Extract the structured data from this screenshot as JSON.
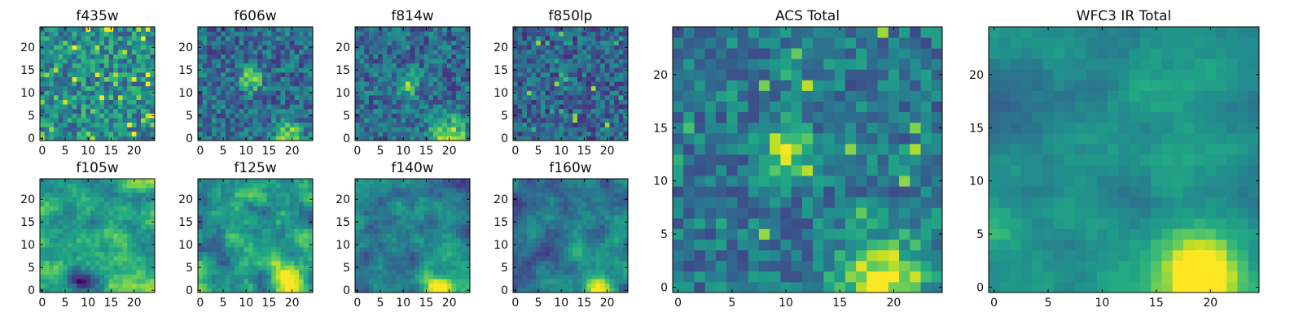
{
  "chart_data": {
    "type": "heatmap",
    "colormap": "viridis",
    "grid": false,
    "pixel_grid": {
      "nx": 25,
      "ny": 25
    },
    "panels": [
      {
        "title": "f435w",
        "pattern": "noise_high",
        "xticks": [
          0,
          5,
          10,
          15,
          20
        ],
        "yticks": [
          0,
          5,
          10,
          15,
          20
        ],
        "xlim": [
          -0.5,
          24.5
        ],
        "ylim": [
          -0.5,
          24.5
        ]
      },
      {
        "title": "f606w",
        "pattern": "source_center",
        "xticks": [
          0,
          5,
          10,
          15,
          20
        ],
        "yticks": [
          0,
          5,
          10,
          15,
          20
        ],
        "xlim": [
          -0.5,
          24.5
        ],
        "ylim": [
          -0.5,
          24.5
        ]
      },
      {
        "title": "f814w",
        "pattern": "source_center_bottom",
        "xticks": [
          0,
          5,
          10,
          15,
          20
        ],
        "yticks": [
          0,
          5,
          10,
          15,
          20
        ],
        "xlim": [
          -0.5,
          24.5
        ],
        "ylim": [
          -0.5,
          24.5
        ]
      },
      {
        "title": "f850lp",
        "pattern": "noise_low",
        "xticks": [
          0,
          5,
          10,
          15,
          20
        ],
        "yticks": [
          0,
          5,
          10,
          15,
          20
        ],
        "xlim": [
          -0.5,
          24.5
        ],
        "ylim": [
          -0.5,
          24.5
        ]
      },
      {
        "title": "f105w",
        "pattern": "smooth_mid",
        "xticks": [
          0,
          5,
          10,
          15,
          20
        ],
        "yticks": [
          0,
          5,
          10,
          15,
          20
        ],
        "xlim": [
          -0.5,
          24.5
        ],
        "ylim": [
          -0.5,
          24.5
        ]
      },
      {
        "title": "f125w",
        "pattern": "smooth_mid_bottom",
        "xticks": [
          0,
          5,
          10,
          15,
          20
        ],
        "yticks": [
          0,
          5,
          10,
          15,
          20
        ],
        "xlim": [
          -0.5,
          24.5
        ],
        "ylim": [
          -0.5,
          24.5
        ]
      },
      {
        "title": "f140w",
        "pattern": "smooth_low_bottom",
        "xticks": [
          0,
          5,
          10,
          15,
          20
        ],
        "yticks": [
          0,
          5,
          10,
          15,
          20
        ],
        "xlim": [
          -0.5,
          24.5
        ],
        "ylim": [
          -0.5,
          24.5
        ]
      },
      {
        "title": "f160w",
        "pattern": "smooth_low_bottom",
        "xticks": [
          0,
          5,
          10,
          15,
          20
        ],
        "yticks": [
          0,
          5,
          10,
          15,
          20
        ],
        "xlim": [
          -0.5,
          24.5
        ],
        "ylim": [
          -0.5,
          24.5
        ]
      },
      {
        "title": "ACS Total",
        "pattern": "acs_total",
        "xticks": [
          0,
          5,
          10,
          15,
          20
        ],
        "yticks": [
          0,
          5,
          10,
          15,
          20
        ],
        "xlim": [
          -0.5,
          24.5
        ],
        "ylim": [
          -0.5,
          24.5
        ]
      },
      {
        "title": "WFC3 IR Total",
        "pattern": "wfc3_total",
        "xticks": [
          0,
          5,
          10,
          15,
          20
        ],
        "yticks": [
          0,
          5,
          10,
          15,
          20
        ],
        "xlim": [
          -0.5,
          24.5
        ],
        "ylim": [
          -0.5,
          24.5
        ]
      }
    ]
  }
}
